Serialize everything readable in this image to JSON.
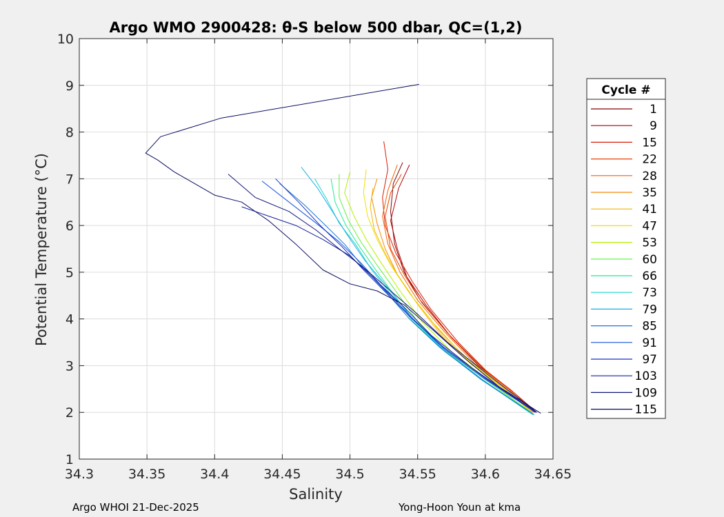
{
  "chart_data": {
    "type": "line",
    "title": "Argo WMO 2900428: θ-S below 500 dbar,  QC=(1,2)",
    "xlabel": "Salinity",
    "ylabel": "Potential Temperature (°C)",
    "xlim": [
      34.3,
      34.65
    ],
    "ylim": [
      1,
      10
    ],
    "xticks": [
      34.3,
      34.35,
      34.4,
      34.45,
      34.5,
      34.55,
      34.6,
      34.65
    ],
    "xtick_labels": [
      "34.3",
      "34.35",
      "34.4",
      "34.45",
      "34.5",
      "34.55",
      "34.6",
      "34.65"
    ],
    "yticks": [
      1,
      2,
      3,
      4,
      5,
      6,
      7,
      8,
      9,
      10
    ],
    "ytick_labels": [
      "1",
      "2",
      "3",
      "4",
      "5",
      "6",
      "7",
      "8",
      "9",
      "10"
    ],
    "grid": true,
    "legend": {
      "title": "Cycle #",
      "placement": "outside-right",
      "entries": [
        "1",
        "9",
        "15",
        "22",
        "28",
        "35",
        "41",
        "47",
        "53",
        "60",
        "66",
        "73",
        "79",
        "85",
        "91",
        "97",
        "103",
        "109",
        "115"
      ],
      "colors": [
        "#800000",
        "#b30000",
        "#d91a00",
        "#e64000",
        "#f06000",
        "#f58a00",
        "#f5b400",
        "#f0e000",
        "#b4f000",
        "#5cf040",
        "#20e890",
        "#19d4c8",
        "#14b0e6",
        "#1478d2",
        "#1450dc",
        "#1430c8",
        "#101e9c",
        "#0c1478",
        "#080c60"
      ]
    },
    "series": [
      {
        "name": "1",
        "color": "#800000",
        "values": [
          [
            34.539,
            7.35
          ],
          [
            34.532,
            6.9
          ],
          [
            34.53,
            6.3
          ],
          [
            34.533,
            5.6
          ],
          [
            34.54,
            5.0
          ],
          [
            34.552,
            4.4
          ],
          [
            34.572,
            3.7
          ],
          [
            34.595,
            3.0
          ],
          [
            34.618,
            2.5
          ],
          [
            34.638,
            2.0
          ]
        ]
      },
      {
        "name": "9",
        "color": "#b30000",
        "values": [
          [
            34.544,
            7.3
          ],
          [
            34.536,
            6.8
          ],
          [
            34.53,
            6.1
          ],
          [
            34.535,
            5.5
          ],
          [
            34.542,
            4.9
          ],
          [
            34.556,
            4.3
          ],
          [
            34.575,
            3.6
          ],
          [
            34.598,
            2.95
          ],
          [
            34.62,
            2.45
          ],
          [
            34.637,
            2.0
          ]
        ]
      },
      {
        "name": "15",
        "color": "#d91a00",
        "values": [
          [
            34.525,
            7.8
          ],
          [
            34.528,
            7.2
          ],
          [
            34.524,
            6.6
          ],
          [
            34.526,
            6.0
          ],
          [
            34.534,
            5.4
          ],
          [
            34.546,
            4.8
          ],
          [
            34.56,
            4.2
          ],
          [
            34.58,
            3.5
          ],
          [
            34.602,
            2.85
          ],
          [
            34.622,
            2.4
          ],
          [
            34.636,
            2.0
          ]
        ]
      },
      {
        "name": "22",
        "color": "#e64000",
        "values": [
          [
            34.538,
            7.1
          ],
          [
            34.53,
            6.7
          ],
          [
            34.526,
            6.2
          ],
          [
            34.53,
            5.5
          ],
          [
            34.54,
            4.95
          ],
          [
            34.553,
            4.35
          ],
          [
            34.572,
            3.7
          ],
          [
            34.596,
            3.0
          ],
          [
            34.62,
            2.45
          ],
          [
            34.637,
            2.0
          ]
        ]
      },
      {
        "name": "28",
        "color": "#f06000",
        "values": [
          [
            34.535,
            7.3
          ],
          [
            34.528,
            6.75
          ],
          [
            34.524,
            6.2
          ],
          [
            34.528,
            5.6
          ],
          [
            34.537,
            5.0
          ],
          [
            34.55,
            4.4
          ],
          [
            34.569,
            3.75
          ],
          [
            34.592,
            3.05
          ],
          [
            34.617,
            2.5
          ],
          [
            34.636,
            2.0
          ]
        ]
      },
      {
        "name": "35",
        "color": "#f58a00",
        "values": [
          [
            34.52,
            7.0
          ],
          [
            34.516,
            6.6
          ],
          [
            34.52,
            6.05
          ],
          [
            34.526,
            5.5
          ],
          [
            34.535,
            4.95
          ],
          [
            34.548,
            4.4
          ],
          [
            34.566,
            3.75
          ],
          [
            34.59,
            3.05
          ],
          [
            34.615,
            2.5
          ],
          [
            34.635,
            2.0
          ]
        ]
      },
      {
        "name": "41",
        "color": "#f5b400",
        "values": [
          [
            34.517,
            6.8
          ],
          [
            34.515,
            6.4
          ],
          [
            34.518,
            5.9
          ],
          [
            34.526,
            5.4
          ],
          [
            34.536,
            4.9
          ],
          [
            34.549,
            4.35
          ],
          [
            34.566,
            3.7
          ],
          [
            34.589,
            3.05
          ],
          [
            34.614,
            2.5
          ],
          [
            34.635,
            2.0
          ]
        ]
      },
      {
        "name": "47",
        "color": "#f0e000",
        "values": [
          [
            34.512,
            7.2
          ],
          [
            34.51,
            6.7
          ],
          [
            34.513,
            6.2
          ],
          [
            34.52,
            5.7
          ],
          [
            34.53,
            5.15
          ],
          [
            34.544,
            4.55
          ],
          [
            34.562,
            3.9
          ],
          [
            34.586,
            3.15
          ],
          [
            34.612,
            2.55
          ],
          [
            34.634,
            2.0
          ]
        ]
      },
      {
        "name": "53",
        "color": "#b4f000",
        "values": [
          [
            34.5,
            7.15
          ],
          [
            34.496,
            6.7
          ],
          [
            34.503,
            6.2
          ],
          [
            34.512,
            5.7
          ],
          [
            34.523,
            5.2
          ],
          [
            34.537,
            4.6
          ],
          [
            34.553,
            3.95
          ],
          [
            34.575,
            3.3
          ],
          [
            34.602,
            2.7
          ],
          [
            34.633,
            2.0
          ]
        ]
      },
      {
        "name": "60",
        "color": "#5cf040",
        "values": [
          [
            34.492,
            7.1
          ],
          [
            34.492,
            6.6
          ],
          [
            34.499,
            6.1
          ],
          [
            34.508,
            5.65
          ],
          [
            34.52,
            5.15
          ],
          [
            34.535,
            4.55
          ],
          [
            34.551,
            3.9
          ],
          [
            34.572,
            3.3
          ],
          [
            34.6,
            2.7
          ],
          [
            34.634,
            2.0
          ]
        ]
      },
      {
        "name": "66",
        "color": "#20e890",
        "values": [
          [
            34.486,
            7.0
          ],
          [
            34.489,
            6.5
          ],
          [
            34.497,
            6.0
          ],
          [
            34.507,
            5.55
          ],
          [
            34.519,
            5.05
          ],
          [
            34.533,
            4.5
          ],
          [
            34.549,
            3.9
          ],
          [
            34.57,
            3.3
          ],
          [
            34.6,
            2.65
          ],
          [
            34.636,
            1.95
          ]
        ]
      },
      {
        "name": "73",
        "color": "#19d4c8",
        "values": [
          [
            34.474,
            7.0
          ],
          [
            34.483,
            6.55
          ],
          [
            34.492,
            6.05
          ],
          [
            34.504,
            5.6
          ],
          [
            34.516,
            5.05
          ],
          [
            34.531,
            4.5
          ],
          [
            34.548,
            3.9
          ],
          [
            34.57,
            3.3
          ],
          [
            34.6,
            2.65
          ],
          [
            34.635,
            1.95
          ]
        ]
      },
      {
        "name": "79",
        "color": "#14b0e6",
        "values": [
          [
            34.464,
            7.25
          ],
          [
            34.476,
            6.8
          ],
          [
            34.487,
            6.3
          ],
          [
            34.498,
            5.8
          ],
          [
            34.511,
            5.25
          ],
          [
            34.527,
            4.7
          ],
          [
            34.545,
            4.05
          ],
          [
            34.567,
            3.4
          ],
          [
            34.598,
            2.7
          ],
          [
            34.636,
            1.95
          ]
        ]
      },
      {
        "name": "85",
        "color": "#1478d2",
        "values": [
          [
            34.448,
            6.9
          ],
          [
            34.466,
            6.45
          ],
          [
            34.482,
            6.0
          ],
          [
            34.496,
            5.6
          ],
          [
            34.51,
            5.1
          ],
          [
            34.526,
            4.6
          ],
          [
            34.544,
            4.0
          ],
          [
            34.566,
            3.4
          ],
          [
            34.597,
            2.7
          ],
          [
            34.636,
            1.95
          ]
        ]
      },
      {
        "name": "91",
        "color": "#1450dc",
        "values": [
          [
            34.435,
            6.95
          ],
          [
            34.455,
            6.5
          ],
          [
            34.475,
            6.05
          ],
          [
            34.492,
            5.65
          ],
          [
            34.508,
            5.2
          ],
          [
            34.525,
            4.65
          ],
          [
            34.545,
            4.05
          ],
          [
            34.568,
            3.4
          ],
          [
            34.598,
            2.75
          ],
          [
            34.637,
            2.0
          ]
        ]
      },
      {
        "name": "97",
        "color": "#1430c8",
        "values": [
          [
            34.445,
            7.0
          ],
          [
            34.462,
            6.5
          ],
          [
            34.478,
            6.0
          ],
          [
            34.494,
            5.55
          ],
          [
            34.51,
            5.05
          ],
          [
            34.527,
            4.55
          ],
          [
            34.546,
            4.0
          ],
          [
            34.569,
            3.4
          ],
          [
            34.599,
            2.75
          ],
          [
            34.637,
            2.0
          ]
        ]
      },
      {
        "name": "103",
        "color": "#101e9c",
        "values": [
          [
            34.42,
            6.4
          ],
          [
            34.44,
            6.2
          ],
          [
            34.46,
            6.0
          ],
          [
            34.48,
            5.7
          ],
          [
            34.5,
            5.35
          ],
          [
            34.52,
            4.8
          ],
          [
            34.54,
            4.25
          ],
          [
            34.56,
            3.65
          ],
          [
            34.59,
            2.95
          ],
          [
            34.62,
            2.35
          ],
          [
            34.638,
            2.0
          ]
        ]
      },
      {
        "name": "109",
        "color": "#0c1478",
        "values": [
          [
            34.41,
            7.1
          ],
          [
            34.43,
            6.6
          ],
          [
            34.455,
            6.3
          ],
          [
            34.475,
            5.9
          ],
          [
            34.492,
            5.5
          ],
          [
            34.51,
            5.1
          ],
          [
            34.53,
            4.6
          ],
          [
            34.55,
            4.1
          ],
          [
            34.572,
            3.5
          ],
          [
            34.6,
            2.85
          ],
          [
            34.638,
            2.0
          ]
        ]
      },
      {
        "name": "115",
        "color": "#080c60",
        "values": [
          [
            34.551,
            9.02
          ],
          [
            34.405,
            8.3
          ],
          [
            34.36,
            7.9
          ],
          [
            34.349,
            7.55
          ],
          [
            34.358,
            7.4
          ],
          [
            34.37,
            7.15
          ],
          [
            34.385,
            6.9
          ],
          [
            34.4,
            6.65
          ],
          [
            34.42,
            6.5
          ],
          [
            34.44,
            6.1
          ],
          [
            34.46,
            5.6
          ],
          [
            34.48,
            5.05
          ],
          [
            34.5,
            4.75
          ],
          [
            34.52,
            4.6
          ],
          [
            34.54,
            4.3
          ],
          [
            34.56,
            3.8
          ],
          [
            34.585,
            3.15
          ],
          [
            34.61,
            2.55
          ],
          [
            34.641,
            1.98
          ]
        ]
      }
    ]
  },
  "footer": {
    "left": "Argo WHOI 21-Dec-2025",
    "right": "Yong-Hoon Youn at kma"
  }
}
